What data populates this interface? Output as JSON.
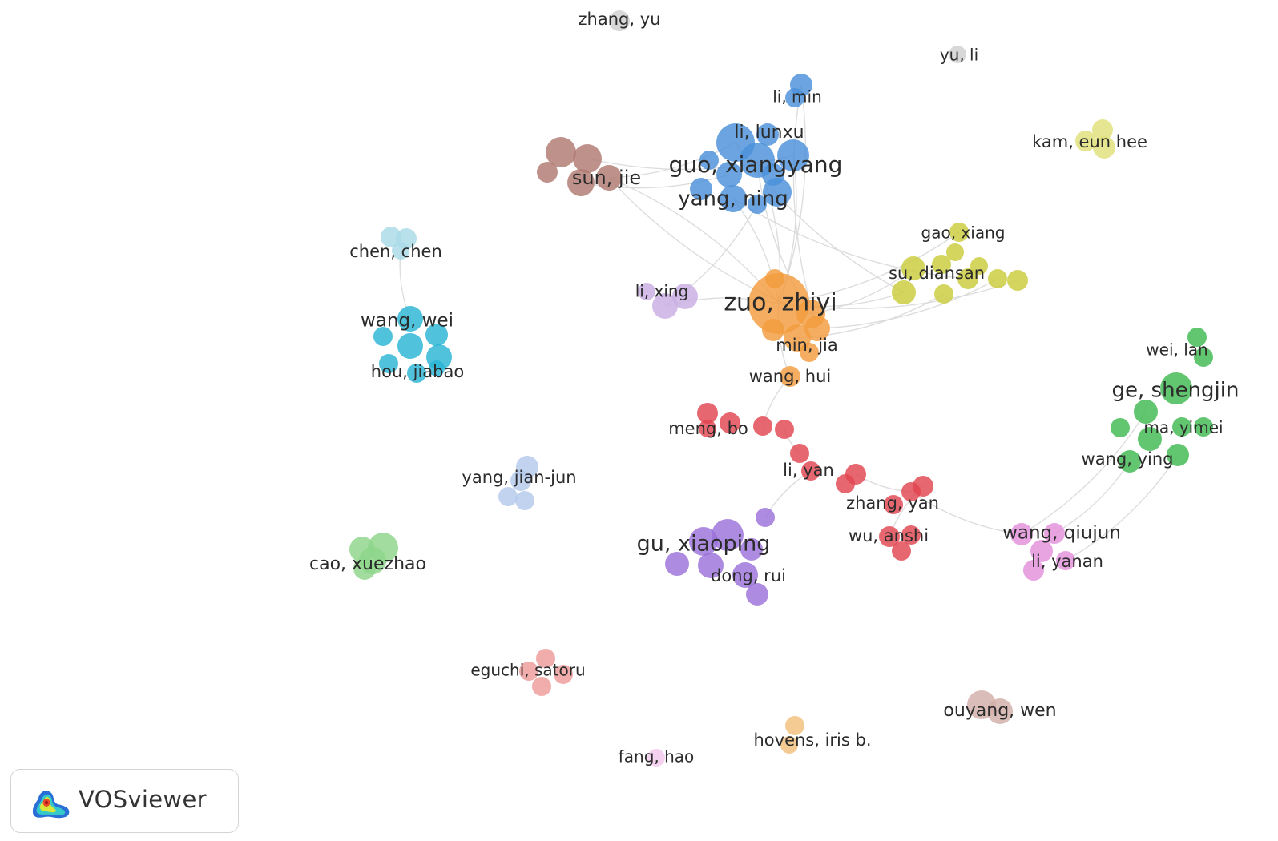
{
  "app_name": "VOSviewer",
  "logo_icon": "vosviewer-density-icon",
  "clusters": [
    {
      "id": "orange",
      "color": "#f39c3e"
    },
    {
      "id": "blue",
      "color": "#4a90d9"
    },
    {
      "id": "brown",
      "color": "#b07a72"
    },
    {
      "id": "yellow",
      "color": "#c9cc3a"
    },
    {
      "id": "cyan",
      "color": "#2ab4d4"
    },
    {
      "id": "lightcyan",
      "color": "#a9dbe6"
    },
    {
      "id": "lilac",
      "color": "#c9aee3"
    },
    {
      "id": "red",
      "color": "#e0454f"
    },
    {
      "id": "purple",
      "color": "#9b72d9"
    },
    {
      "id": "green",
      "color": "#3fb950"
    },
    {
      "id": "lightgreen",
      "color": "#8ed68a"
    },
    {
      "id": "pink",
      "color": "#e38fdb"
    },
    {
      "id": "salmon",
      "color": "#ee9a9a"
    },
    {
      "id": "lightblue",
      "color": "#b3c9ec"
    },
    {
      "id": "gray",
      "color": "#cfcfcf"
    },
    {
      "id": "lightyellow",
      "color": "#e0e07a"
    },
    {
      "id": "beige",
      "color": "#d2aea8"
    },
    {
      "id": "peach",
      "color": "#f2c07a"
    },
    {
      "id": "lightpink",
      "color": "#f2c7ec"
    }
  ],
  "authors": [
    {
      "label": "zhang, yu",
      "cluster": "gray"
    },
    {
      "label": "yu, li",
      "cluster": "gray"
    },
    {
      "label": "li, min",
      "cluster": "blue"
    },
    {
      "label": "li, lunxu",
      "cluster": "blue"
    },
    {
      "label": "guo, xiangyang",
      "cluster": "blue"
    },
    {
      "label": "yang, ning",
      "cluster": "blue"
    },
    {
      "label": "sun, jie",
      "cluster": "brown"
    },
    {
      "label": "kam, eun hee",
      "cluster": "lightyellow"
    },
    {
      "label": "gao, xiang",
      "cluster": "yellow"
    },
    {
      "label": "su, diansan",
      "cluster": "yellow"
    },
    {
      "label": "chen, chen",
      "cluster": "lightcyan"
    },
    {
      "label": "li, xing",
      "cluster": "lilac"
    },
    {
      "label": "zuo, zhiyi",
      "cluster": "orange"
    },
    {
      "label": "min, jia",
      "cluster": "orange"
    },
    {
      "label": "wang, hui",
      "cluster": "orange"
    },
    {
      "label": "wang, wei",
      "cluster": "cyan"
    },
    {
      "label": "hou, jiabao",
      "cluster": "cyan"
    },
    {
      "label": "wei, lan",
      "cluster": "green"
    },
    {
      "label": "ge, shengjin",
      "cluster": "green"
    },
    {
      "label": "ma, yimei",
      "cluster": "green"
    },
    {
      "label": "wang, ying",
      "cluster": "green"
    },
    {
      "label": "meng, bo",
      "cluster": "red"
    },
    {
      "label": "li, yan",
      "cluster": "red"
    },
    {
      "label": "yang, jian-jun",
      "cluster": "lightblue"
    },
    {
      "label": "zhang, yan",
      "cluster": "red"
    },
    {
      "label": "wu, anshi",
      "cluster": "red"
    },
    {
      "label": "gu, xiaoping",
      "cluster": "purple"
    },
    {
      "label": "dong, rui",
      "cluster": "purple"
    },
    {
      "label": "wang, qiujun",
      "cluster": "pink"
    },
    {
      "label": "li, yanan",
      "cluster": "pink"
    },
    {
      "label": "cao, xuezhao",
      "cluster": "lightgreen"
    },
    {
      "label": "eguchi, satoru",
      "cluster": "salmon"
    },
    {
      "label": "ouyang, wen",
      "cluster": "beige"
    },
    {
      "label": "hovens, iris b.",
      "cluster": "peach"
    },
    {
      "label": "fang, hao",
      "cluster": "lightpink"
    }
  ]
}
